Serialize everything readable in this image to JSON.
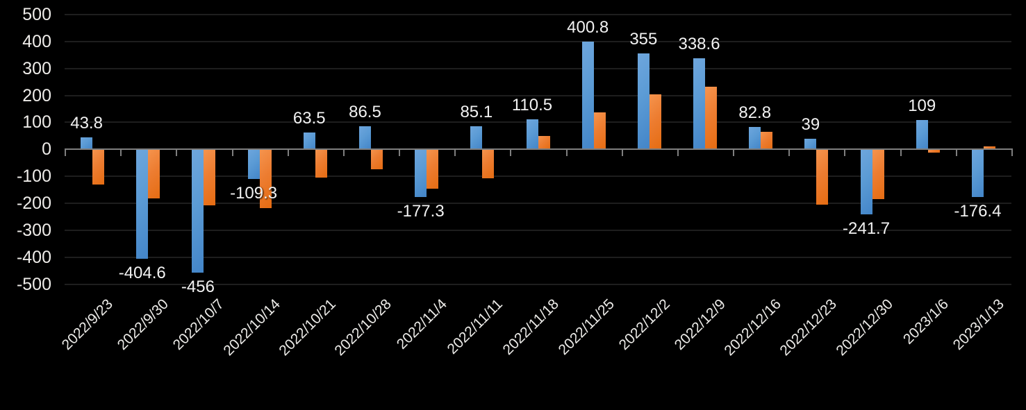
{
  "chart_data": {
    "type": "bar",
    "title": "",
    "legend_position": "none",
    "grid": true,
    "background": "#000000",
    "gridline_color": "#1e1e1e",
    "axis_color": "#7f7f7f",
    "text_color": "#f2f2f2",
    "ylim": [
      -500,
      500
    ],
    "ytick_step": 100,
    "ytick_labels": [
      "500",
      "400",
      "300",
      "200",
      "100",
      "0",
      "-100",
      "-200",
      "-300",
      "-400",
      "-500"
    ],
    "categories": [
      "2022/9/23",
      "2022/9/30",
      "2022/10/7",
      "2022/10/14",
      "2022/10/21",
      "2022/10/28",
      "2022/11/4",
      "2022/11/11",
      "2022/11/18",
      "2022/11/25",
      "2022/12/2",
      "2022/12/9",
      "2022/12/16",
      "2022/12/23",
      "2022/12/30",
      "2023/1/6",
      "2023/1/13"
    ],
    "series": [
      {
        "name": "blue-series",
        "color": "#5b9bd5",
        "values": [
          43.8,
          -404.6,
          -456,
          -109.3,
          63.5,
          86.5,
          -177.3,
          85.1,
          110.5,
          400.8,
          355,
          338.6,
          82.8,
          39,
          -241.7,
          109,
          -176.4
        ],
        "data_labels": [
          "43.8",
          "-404.6",
          "-456",
          "-109.3",
          "63.5",
          "86.5",
          "-177.3",
          "85.1",
          "110.5",
          "400.8",
          "355",
          "338.6",
          "82.8",
          "39",
          "-241.7",
          "109",
          "-176.4"
        ],
        "labels_visible": true
      },
      {
        "name": "orange-series",
        "color": "#ed7d31",
        "values": [
          -130,
          -183,
          -207,
          -218,
          -106,
          -73,
          -147,
          -108,
          50,
          138,
          204,
          232,
          65,
          -206,
          -184,
          -12,
          10
        ],
        "data_labels": null,
        "labels_visible": false
      }
    ]
  }
}
